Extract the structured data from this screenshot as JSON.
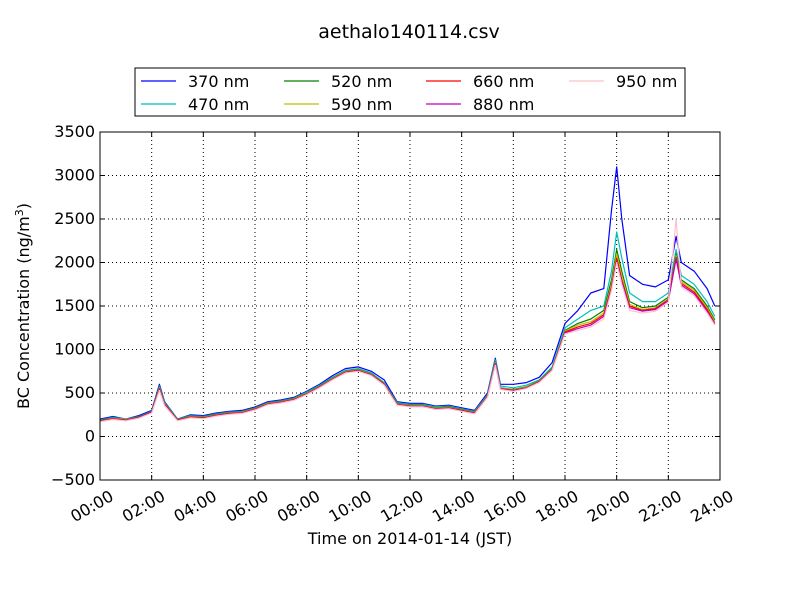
{
  "chart_data": {
    "type": "line",
    "title": "aethalo140114.csv",
    "xlabel": "Time on 2014-01-14 (JST)",
    "ylabel": "BC Concentration (ng/m³)",
    "ylabel_main": "BC Concentration (ng/m",
    "ylabel_sup": "3",
    "ylabel_end": ")",
    "xlim": [
      0,
      24
    ],
    "ylim": [
      -500,
      3500
    ],
    "x_ticks": [
      0,
      2,
      4,
      6,
      8,
      10,
      12,
      14,
      16,
      18,
      20,
      22,
      24
    ],
    "x_tick_labels": [
      "00:00",
      "02:00",
      "04:00",
      "06:00",
      "08:00",
      "10:00",
      "12:00",
      "14:00",
      "16:00",
      "18:00",
      "20:00",
      "22:00",
      "24:00"
    ],
    "y_ticks": [
      -500,
      0,
      500,
      1000,
      1500,
      2000,
      2500,
      3000,
      3500
    ],
    "y_tick_labels": [
      "−500",
      "0",
      "500",
      "1000",
      "1500",
      "2000",
      "2500",
      "3000",
      "3500"
    ],
    "grid": true,
    "legend_position": "top-center",
    "x": [
      0,
      0.5,
      1,
      1.5,
      2,
      2.3,
      2.5,
      3,
      3.5,
      4,
      4.5,
      5,
      5.5,
      6,
      6.5,
      7,
      7.5,
      8,
      8.5,
      9,
      9.5,
      10,
      10.5,
      11,
      11.5,
      12,
      12.5,
      13,
      13.5,
      14,
      14.5,
      15,
      15.3,
      15.5,
      16,
      16.5,
      17,
      17.5,
      18,
      18.5,
      19,
      19.5,
      19.8,
      20,
      20.2,
      20.5,
      21,
      21.5,
      22,
      22.3,
      22.5,
      23,
      23.5,
      23.8
    ],
    "series": [
      {
        "name": "370 nm",
        "color": "#0000ff",
        "values": [
          200,
          230,
          200,
          240,
          300,
          600,
          400,
          200,
          250,
          240,
          270,
          290,
          300,
          340,
          400,
          420,
          450,
          520,
          600,
          700,
          780,
          800,
          750,
          650,
          400,
          380,
          380,
          350,
          360,
          330,
          300,
          500,
          900,
          600,
          600,
          620,
          680,
          850,
          1300,
          1450,
          1650,
          1700,
          2600,
          3100,
          2500,
          1850,
          1750,
          1720,
          1800,
          2300,
          2000,
          1900,
          1700,
          1500
        ]
      },
      {
        "name": "470 nm",
        "color": "#00bfbf",
        "values": [
          190,
          220,
          200,
          230,
          290,
          580,
          390,
          200,
          240,
          230,
          260,
          280,
          290,
          330,
          390,
          410,
          440,
          510,
          590,
          680,
          760,
          780,
          730,
          620,
          390,
          370,
          370,
          340,
          350,
          320,
          290,
          480,
          880,
          580,
          560,
          590,
          650,
          800,
          1250,
          1350,
          1450,
          1500,
          1900,
          2350,
          2050,
          1650,
          1550,
          1550,
          1650,
          2150,
          1850,
          1750,
          1550,
          1380
        ]
      },
      {
        "name": "520 nm",
        "color": "#008000",
        "values": [
          185,
          215,
          195,
          225,
          285,
          570,
          380,
          195,
          235,
          225,
          255,
          275,
          285,
          325,
          385,
          405,
          435,
          500,
          580,
          670,
          750,
          770,
          720,
          610,
          380,
          360,
          360,
          330,
          340,
          310,
          280,
          470,
          860,
          560,
          540,
          570,
          640,
          780,
          1220,
          1300,
          1350,
          1450,
          1800,
          2150,
          1900,
          1550,
          1480,
          1500,
          1600,
          2100,
          1800,
          1700,
          1500,
          1340
        ]
      },
      {
        "name": "590 nm",
        "color": "#bfbf00",
        "values": [
          180,
          210,
          195,
          220,
          280,
          560,
          375,
          190,
          230,
          220,
          250,
          270,
          280,
          320,
          380,
          400,
          430,
          495,
          575,
          665,
          745,
          765,
          715,
          605,
          375,
          355,
          355,
          325,
          335,
          305,
          275,
          465,
          850,
          555,
          535,
          565,
          635,
          775,
          1210,
          1280,
          1320,
          1420,
          1750,
          2100,
          1850,
          1520,
          1460,
          1480,
          1580,
          2080,
          1780,
          1680,
          1480,
          1320
        ]
      },
      {
        "name": "660 nm",
        "color": "#ff0000",
        "values": [
          180,
          205,
          190,
          220,
          280,
          550,
          370,
          190,
          225,
          215,
          245,
          265,
          275,
          315,
          375,
          395,
          425,
          490,
          570,
          660,
          740,
          760,
          710,
          600,
          370,
          350,
          350,
          320,
          330,
          300,
          270,
          460,
          840,
          550,
          530,
          560,
          630,
          770,
          1200,
          1260,
          1300,
          1400,
          1720,
          2050,
          1800,
          1500,
          1450,
          1470,
          1570,
          2060,
          1760,
          1660,
          1460,
          1300
        ]
      },
      {
        "name": "880 nm",
        "color": "#bf00bf",
        "values": [
          175,
          200,
          185,
          215,
          275,
          540,
          360,
          185,
          220,
          210,
          240,
          260,
          270,
          310,
          370,
          390,
          420,
          485,
          565,
          655,
          735,
          755,
          705,
          595,
          365,
          345,
          345,
          315,
          325,
          295,
          265,
          455,
          830,
          545,
          525,
          555,
          625,
          765,
          1190,
          1240,
          1280,
          1380,
          1700,
          2020,
          1780,
          1480,
          1440,
          1460,
          1560,
          2040,
          1740,
          1640,
          1440,
          1290
        ]
      },
      {
        "name": "950 nm",
        "color": "#ffc0cb",
        "values": [
          170,
          195,
          180,
          210,
          270,
          530,
          355,
          180,
          215,
          205,
          235,
          255,
          265,
          305,
          365,
          385,
          415,
          480,
          560,
          650,
          730,
          750,
          700,
          590,
          360,
          340,
          340,
          310,
          320,
          290,
          260,
          450,
          820,
          540,
          520,
          550,
          620,
          760,
          1180,
          1220,
          1260,
          1350,
          1680,
          2000,
          1750,
          1450,
          1420,
          1440,
          1540,
          2500,
          1720,
          1620,
          1420,
          1280
        ]
      }
    ]
  }
}
